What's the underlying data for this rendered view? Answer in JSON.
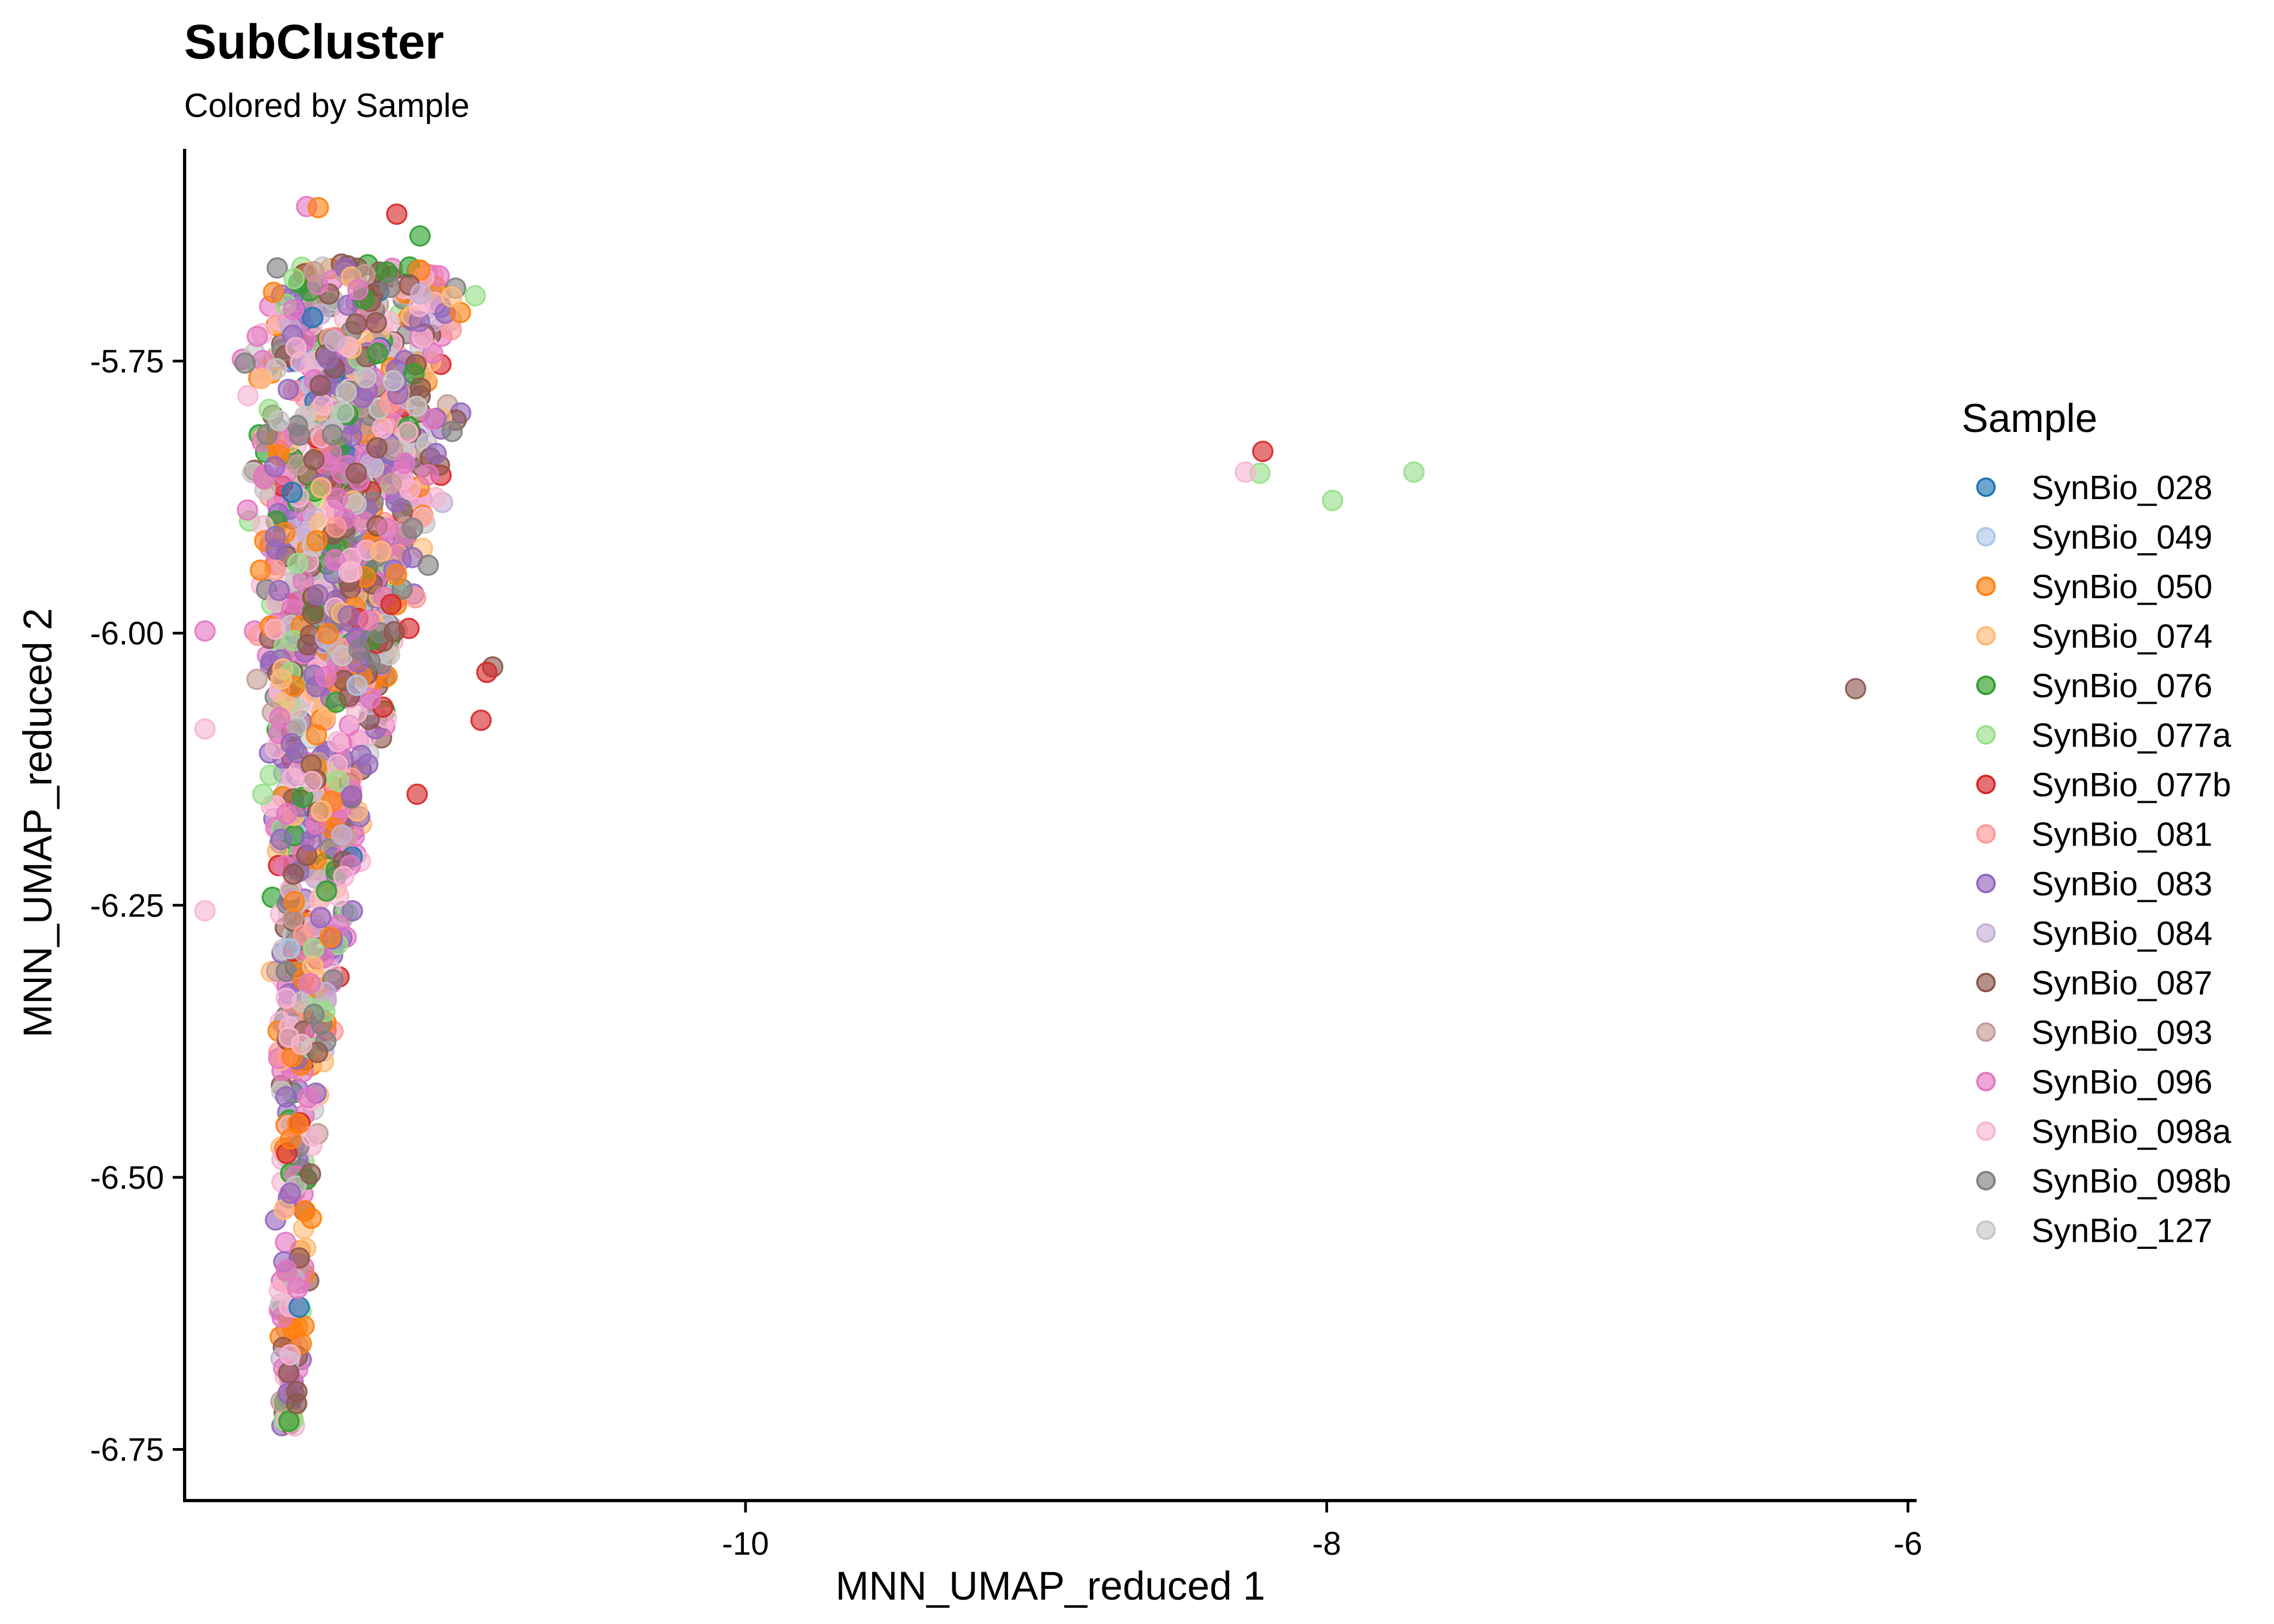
{
  "chart_data": {
    "type": "scatter",
    "title": "SubCluster",
    "subtitle": "Colored by Sample",
    "xlabel": "MNN_UMAP_reduced 1",
    "ylabel": "MNN_UMAP_reduced 2",
    "xlim": [
      -11.93,
      -5.97
    ],
    "ylim": [
      -6.797,
      -5.555
    ],
    "xticks": [
      -10,
      -8,
      -6
    ],
    "yticks": [
      -5.75,
      -6.0,
      -6.25,
      -6.5,
      -6.75
    ],
    "xtick_labels": [
      "-10",
      "-8",
      "-6"
    ],
    "ytick_labels": [
      "-5.75",
      "-6.00",
      "-6.25",
      "-6.50",
      "-6.75"
    ],
    "grid": false,
    "legend_position": "right",
    "legend": {
      "title": "Sample",
      "entries": [
        {
          "name": "SynBio_028",
          "color": "#1f77b4"
        },
        {
          "name": "SynBio_049",
          "color": "#aec7e8"
        },
        {
          "name": "SynBio_050",
          "color": "#ff7f0e"
        },
        {
          "name": "SynBio_074",
          "color": "#ffbb78"
        },
        {
          "name": "SynBio_076",
          "color": "#2ca02c"
        },
        {
          "name": "SynBio_077a",
          "color": "#98df8a"
        },
        {
          "name": "SynBio_077b",
          "color": "#d62728"
        },
        {
          "name": "SynBio_081",
          "color": "#ff9896"
        },
        {
          "name": "SynBio_083",
          "color": "#9467bd"
        },
        {
          "name": "SynBio_084",
          "color": "#c5b0d5"
        },
        {
          "name": "SynBio_087",
          "color": "#8c564b"
        },
        {
          "name": "SynBio_093",
          "color": "#c49c94"
        },
        {
          "name": "SynBio_096",
          "color": "#e377c2"
        },
        {
          "name": "SynBio_098a",
          "color": "#f7b6d2"
        },
        {
          "name": "SynBio_098b",
          "color": "#7f7f7f"
        },
        {
          "name": "SynBio_127",
          "color": "#c7c7c7"
        }
      ]
    },
    "outlier_points": [
      {
        "x": -8.22,
        "y": -5.833,
        "sample": "SynBio_077b"
      },
      {
        "x": -8.23,
        "y": -5.853,
        "sample": "SynBio_077a"
      },
      {
        "x": -8.28,
        "y": -5.852,
        "sample": "SynBio_098a"
      },
      {
        "x": -7.98,
        "y": -5.878,
        "sample": "SynBio_077a"
      },
      {
        "x": -7.7,
        "y": -5.852,
        "sample": "SynBio_077a"
      },
      {
        "x": -6.18,
        "y": -6.051,
        "sample": "SynBio_087"
      },
      {
        "x": -10.87,
        "y": -6.031,
        "sample": "SynBio_087"
      },
      {
        "x": -10.89,
        "y": -6.036,
        "sample": "SynBio_077b"
      },
      {
        "x": -10.91,
        "y": -6.08,
        "sample": "SynBio_077b"
      },
      {
        "x": -11.13,
        "y": -6.148,
        "sample": "SynBio_077b"
      },
      {
        "x": -11.2,
        "y": -5.615,
        "sample": "SynBio_077b"
      },
      {
        "x": -11.12,
        "y": -5.635,
        "sample": "SynBio_076"
      },
      {
        "x": -10.93,
        "y": -5.69,
        "sample": "SynBio_077a"
      },
      {
        "x": -11.86,
        "y": -5.998,
        "sample": "SynBio_096"
      },
      {
        "x": -11.86,
        "y": -6.088,
        "sample": "SynBio_098a"
      },
      {
        "x": -11.86,
        "y": -6.255,
        "sample": "SynBio_098a"
      },
      {
        "x": -11.51,
        "y": -5.608,
        "sample": "SynBio_096"
      },
      {
        "x": -11.47,
        "y": -5.609,
        "sample": "SynBio_050"
      }
    ],
    "cluster": {
      "approx_point_count": 1500,
      "description_x_range": [
        -11.85,
        -10.96
      ],
      "description_y_range": [
        -6.73,
        -5.6
      ],
      "sample_weights": [
        2,
        1,
        8,
        6,
        5,
        4,
        3,
        4,
        14,
        6,
        8,
        3,
        16,
        10,
        5,
        5
      ]
    }
  }
}
